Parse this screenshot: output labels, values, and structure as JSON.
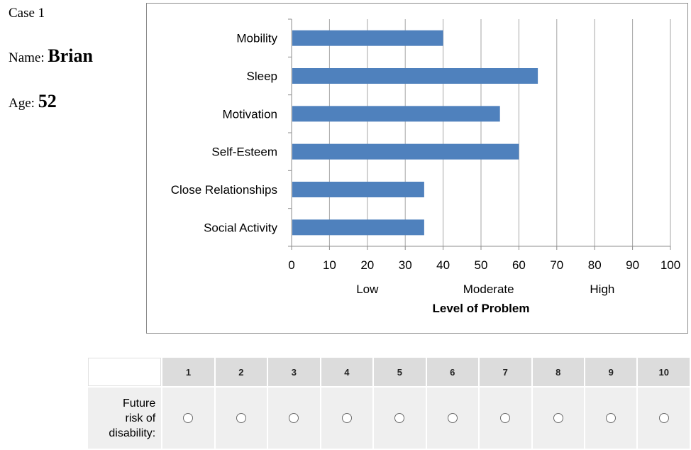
{
  "case": {
    "case_label": "Case 1",
    "name_label": "Name: ",
    "name_value": "Brian",
    "age_label": "Age: ",
    "age_value": "52"
  },
  "chart_data": {
    "type": "bar",
    "orientation": "horizontal",
    "categories": [
      "Mobility",
      "Sleep",
      "Motivation",
      "Self-Esteem",
      "Close Relationships",
      "Social Activity"
    ],
    "values": [
      40,
      65,
      55,
      60,
      35,
      35
    ],
    "xlim": [
      0,
      100
    ],
    "xticks": [
      0,
      10,
      20,
      30,
      40,
      50,
      60,
      70,
      80,
      90,
      100
    ],
    "band_labels": [
      "Low",
      "Moderate",
      "High"
    ],
    "xlabel": "Level of Problem",
    "grid": "vertical",
    "bar_color": "#4f81bd"
  },
  "rating": {
    "columns": [
      "1",
      "2",
      "3",
      "4",
      "5",
      "6",
      "7",
      "8",
      "9",
      "10"
    ],
    "row_label_lines": [
      "Future",
      "risk of",
      "disability:"
    ]
  }
}
